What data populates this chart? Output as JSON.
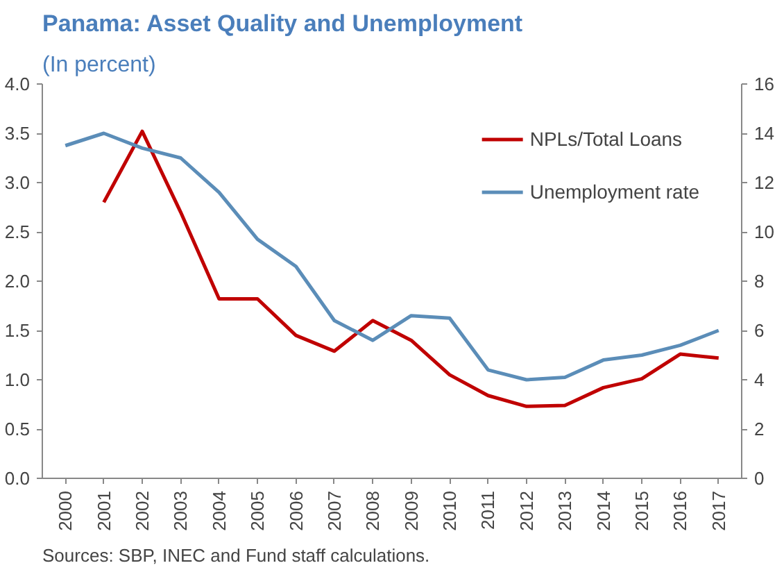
{
  "chart_data": {
    "type": "line",
    "title": "Panama: Asset Quality and Unemployment",
    "subtitle": "(In percent)",
    "categories": [
      "2000",
      "2001",
      "2002",
      "2003",
      "2004",
      "2005",
      "2006",
      "2007",
      "2008",
      "2009",
      "2010",
      "2011",
      "2012",
      "2013",
      "2014",
      "2015",
      "2016",
      "2017"
    ],
    "series": [
      {
        "name": "NPLs/Total Loans",
        "color": "#c00000",
        "values": [
          null,
          2.8,
          3.52,
          2.7,
          1.82,
          1.82,
          1.45,
          1.29,
          1.6,
          1.4,
          1.05,
          0.84,
          0.73,
          0.74,
          0.92,
          1.01,
          1.26,
          1.22
        ]
      },
      {
        "name": "Unemployment rate",
        "color": "#5b8db8",
        "axis": "y2",
        "values": [
          13.5,
          14.0,
          13.4,
          13.0,
          11.6,
          9.7,
          8.6,
          6.4,
          5.6,
          6.6,
          6.5,
          4.4,
          4.0,
          4.1,
          4.8,
          5.0,
          5.4,
          6.0
        ]
      }
    ],
    "ylim": [
      0,
      4
    ],
    "yticks": [
      {
        "value": 0,
        "label": "0.0"
      },
      {
        "value": 0.5,
        "label": "0.5"
      },
      {
        "value": 1,
        "label": "1.0"
      },
      {
        "value": 1.5,
        "label": "1.5"
      },
      {
        "value": 2,
        "label": "2.0"
      },
      {
        "value": 2.5,
        "label": "2.5"
      },
      {
        "value": 3,
        "label": "3.0"
      },
      {
        "value": 3.5,
        "label": "3.5"
      },
      {
        "value": 4,
        "label": "4.0"
      }
    ],
    "y2lim": [
      0,
      16
    ],
    "y2ticks": [
      0,
      2,
      4,
      6,
      8,
      10,
      12,
      14,
      16
    ],
    "grid": false,
    "legend": "top right",
    "line_style": "solid",
    "marker": "none",
    "annotations": [
      "Sources: SBP, INEC and Fund staff calculations."
    ]
  }
}
